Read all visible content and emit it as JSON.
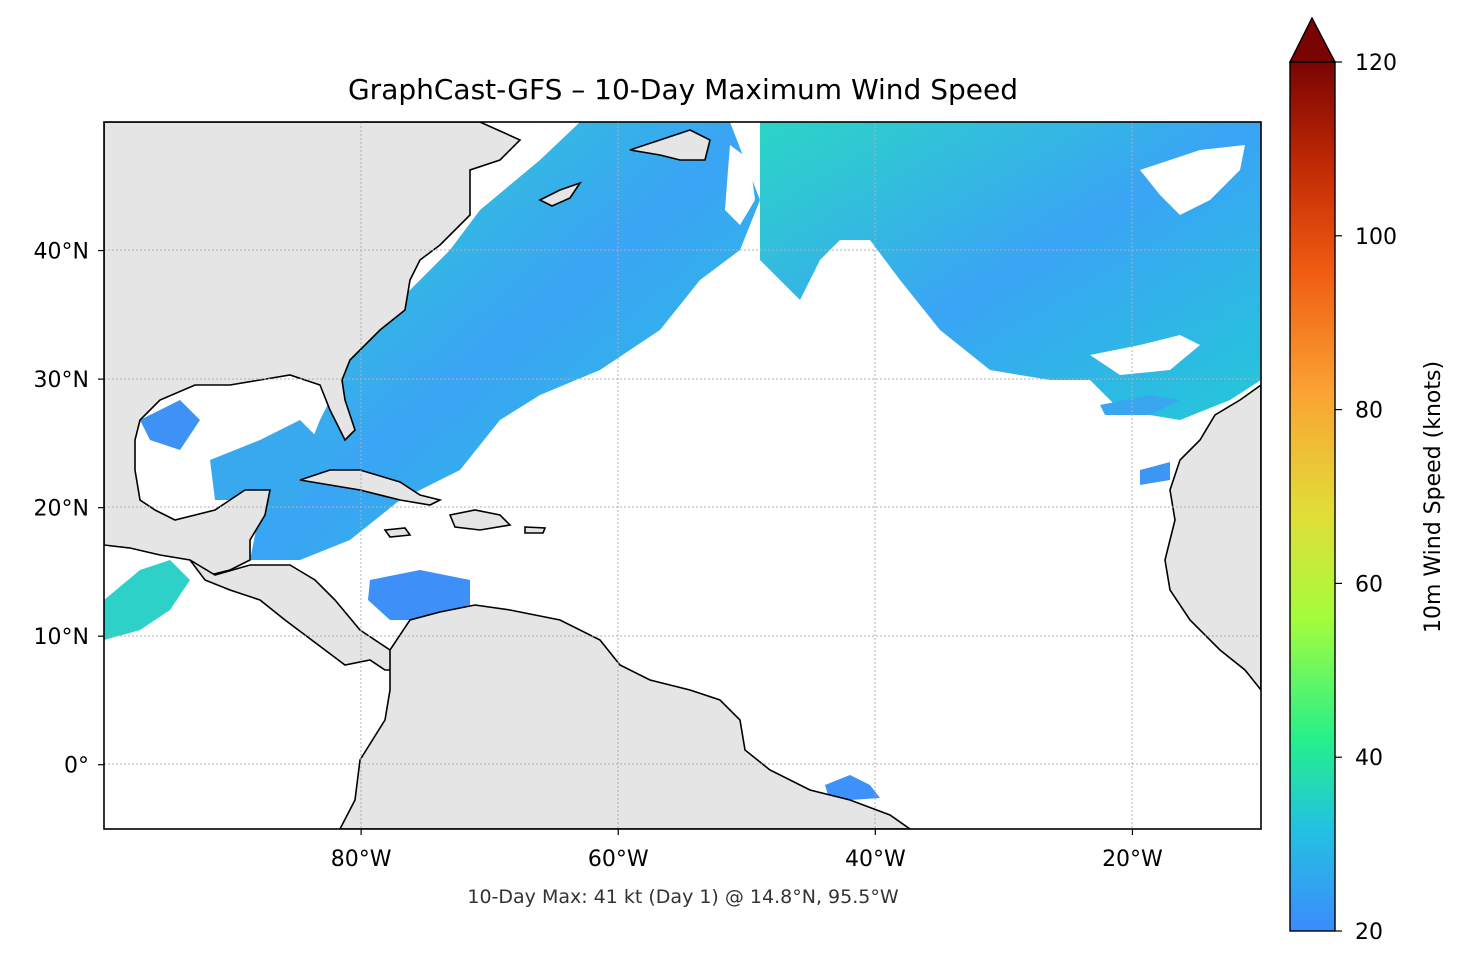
{
  "title": "GraphCast-GFS – 10-Day Maximum Wind Speed",
  "caption": "10-Day Max: 41 kt (Day 1) @ 14.8°N, 95.5°W",
  "map": {
    "extent": {
      "lon_min": -100,
      "lon_max": -10,
      "lat_min": -5,
      "lat_max": 50
    },
    "gridlines": true,
    "lon_ticks": [
      {
        "value": -80,
        "label": "80°W"
      },
      {
        "value": -60,
        "label": "60°W"
      },
      {
        "value": -40,
        "label": "40°W"
      },
      {
        "value": -20,
        "label": "20°W"
      }
    ],
    "lat_ticks": [
      {
        "value": 40,
        "label": "40°N"
      },
      {
        "value": 30,
        "label": "30°N"
      },
      {
        "value": 20,
        "label": "20°N"
      },
      {
        "value": 10,
        "label": "10°N"
      },
      {
        "value": 0,
        "label": "0°"
      }
    ],
    "land_color": "#e5e5e5",
    "ocean_color": "#ffffff"
  },
  "colorbar": {
    "label": "10m Wind Speed (knots)",
    "min": 20,
    "max": 120,
    "extend": "max",
    "ticks": [
      {
        "value": 20,
        "label": "20"
      },
      {
        "value": 40,
        "label": "40"
      },
      {
        "value": 60,
        "label": "60"
      },
      {
        "value": 80,
        "label": "80"
      },
      {
        "value": 100,
        "label": "100"
      },
      {
        "value": 120,
        "label": "120"
      }
    ],
    "colormap": "turbo",
    "stops": [
      "#3d8bfd",
      "#22c3e0",
      "#25f08a",
      "#a4fd3c",
      "#e1dd37",
      "#fba334",
      "#f05b12",
      "#c12a04",
      "#7a0403"
    ]
  },
  "max_point": {
    "speed_kt": 41,
    "day": 1,
    "lat": 14.8,
    "lon": -95.5
  }
}
